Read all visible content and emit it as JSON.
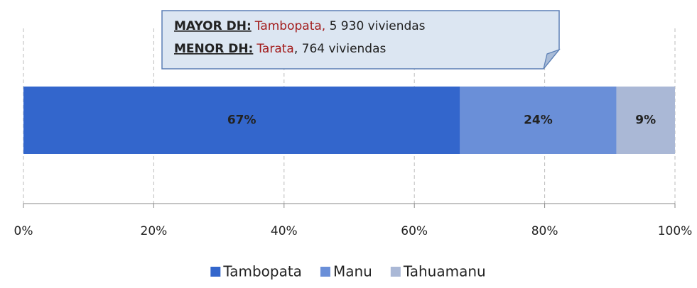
{
  "chart_data": {
    "type": "stacked_bar_horizontal",
    "categories": [
      null
    ],
    "series": [
      {
        "name": "Tambopata",
        "color": "#3366cc",
        "label_color": "#ffffff",
        "values": [
          67
        ],
        "value_labels": [
          "67%"
        ]
      },
      {
        "name": "Manu",
        "color": "#6a8fd8",
        "label_color": "#ffffff",
        "values": [
          24
        ],
        "value_labels": [
          "24%"
        ]
      },
      {
        "name": "Tahuamanu",
        "color": "#aab8d6",
        "label_color": "#111111",
        "values": [
          9
        ],
        "value_labels": [
          "9%"
        ]
      }
    ],
    "xlim": [
      0,
      100
    ],
    "xticks": [
      {
        "value": 0,
        "label": "0%"
      },
      {
        "value": 20,
        "label": "20%"
      },
      {
        "value": 40,
        "label": "40%"
      },
      {
        "value": 60,
        "label": "60%"
      },
      {
        "value": 80,
        "label": "80%"
      },
      {
        "value": 100,
        "label": "100%"
      }
    ],
    "grid": true,
    "legend": "bottom",
    "annotation": [
      {
        "label": "MAYOR DH:",
        "highlight": "Tambopata,",
        "rest": " 5 930 viviendas"
      },
      {
        "label": "MENOR DH:",
        "highlight": "Tarata",
        "rest": ", 764 viviendas"
      }
    ],
    "annotation_highlight_color": "#a31c1c"
  }
}
